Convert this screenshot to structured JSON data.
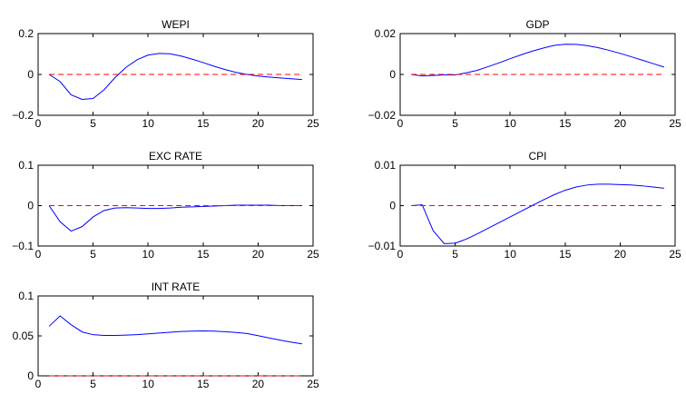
{
  "colors": {
    "irf": "#0000ff",
    "zero": "#ff0000",
    "axis": "#000000"
  },
  "chart_data": [
    {
      "type": "line",
      "title": "WEPI",
      "xlabel": "",
      "ylabel": "",
      "xlim": [
        0,
        25
      ],
      "ylim": [
        -0.2,
        0.2
      ],
      "xticks": [
        0,
        5,
        10,
        15,
        20,
        25
      ],
      "yticks": [
        -0.2,
        0,
        0.2
      ],
      "ytick_labels": [
        "−0.2",
        "0",
        "0.2"
      ],
      "grid": false,
      "x": [
        1,
        2,
        3,
        4,
        5,
        6,
        7,
        8,
        9,
        10,
        11,
        12,
        13,
        14,
        15,
        16,
        17,
        18,
        19,
        20,
        21,
        22,
        23,
        24
      ],
      "series": [
        {
          "values": [
            0,
            -0.035,
            -0.1,
            -0.122,
            -0.118,
            -0.075,
            -0.015,
            0.035,
            0.072,
            0.095,
            0.103,
            0.101,
            0.09,
            0.075,
            0.058,
            0.04,
            0.024,
            0.01,
            0.0,
            -0.008,
            -0.013,
            -0.017,
            -0.021,
            -0.025
          ],
          "style": "solid"
        },
        {
          "values": [
            0,
            0,
            0,
            0,
            0,
            0,
            0,
            0,
            0,
            0,
            0,
            0,
            0,
            0,
            0,
            0,
            0,
            0,
            0,
            0,
            0,
            0,
            0,
            0
          ],
          "style": "dashed"
        }
      ]
    },
    {
      "type": "line",
      "title": "GDP",
      "xlabel": "",
      "ylabel": "",
      "xlim": [
        0,
        25
      ],
      "ylim": [
        -0.02,
        0.02
      ],
      "xticks": [
        0,
        5,
        10,
        15,
        20,
        25
      ],
      "yticks": [
        -0.02,
        0,
        0.02
      ],
      "ytick_labels": [
        "−0.02",
        "0",
        "0.02"
      ],
      "grid": false,
      "x": [
        1,
        2,
        3,
        4,
        5,
        6,
        7,
        8,
        9,
        10,
        11,
        12,
        13,
        14,
        15,
        16,
        17,
        18,
        19,
        20,
        21,
        22,
        23,
        24
      ],
      "series": [
        {
          "values": [
            0,
            -0.0007,
            -0.0005,
            -0.0002,
            -0.0002,
            0.0008,
            0.002,
            0.0038,
            0.0057,
            0.0077,
            0.0096,
            0.0114,
            0.0129,
            0.0142,
            0.0148,
            0.0147,
            0.0141,
            0.0131,
            0.0118,
            0.0103,
            0.0087,
            0.007,
            0.0053,
            0.0036
          ],
          "style": "solid"
        },
        {
          "values": [
            0,
            0,
            0,
            0,
            0,
            0,
            0,
            0,
            0,
            0,
            0,
            0,
            0,
            0,
            0,
            0,
            0,
            0,
            0,
            0,
            0,
            0,
            0,
            0
          ],
          "style": "dashed"
        }
      ]
    },
    {
      "type": "line",
      "title": "EXC RATE",
      "xlabel": "",
      "ylabel": "",
      "xlim": [
        0,
        25
      ],
      "ylim": [
        -0.1,
        0.1
      ],
      "xticks": [
        0,
        5,
        10,
        15,
        20,
        25
      ],
      "yticks": [
        -0.1,
        0,
        0.1
      ],
      "ytick_labels": [
        "−0.1",
        "0",
        "0.1"
      ],
      "grid": false,
      "x": [
        1,
        2,
        3,
        4,
        5,
        6,
        7,
        8,
        9,
        10,
        11,
        12,
        13,
        14,
        15,
        16,
        17,
        18,
        19,
        20,
        21,
        22,
        23,
        24
      ],
      "series": [
        {
          "values": [
            0,
            -0.04,
            -0.063,
            -0.052,
            -0.028,
            -0.012,
            -0.006,
            -0.005,
            -0.006,
            -0.007,
            -0.007,
            -0.006,
            -0.004,
            -0.003,
            -0.002,
            -0.001,
            0.0,
            0.001,
            0.001,
            0.001,
            0.001,
            0.0,
            0.0,
            0.0
          ],
          "style": "solid"
        },
        {
          "values": [
            0,
            0,
            0,
            0,
            0,
            0,
            0,
            0,
            0,
            0,
            0,
            0,
            0,
            0,
            0,
            0,
            0,
            0,
            0,
            0,
            0,
            0,
            0,
            0
          ],
          "style": "dashed"
        }
      ]
    },
    {
      "type": "line",
      "title": "CPI",
      "xlabel": "",
      "ylabel": "",
      "xlim": [
        0,
        25
      ],
      "ylim": [
        -0.01,
        0.01
      ],
      "xticks": [
        0,
        5,
        10,
        15,
        20,
        25
      ],
      "yticks": [
        -0.01,
        0,
        0.01
      ],
      "ytick_labels": [
        "−0.01",
        "0",
        "0.01"
      ],
      "grid": false,
      "x": [
        1,
        2,
        3,
        4,
        5,
        6,
        7,
        8,
        9,
        10,
        11,
        12,
        13,
        14,
        15,
        16,
        17,
        18,
        19,
        20,
        21,
        22,
        23,
        24
      ],
      "series": [
        {
          "values": [
            0,
            0.0002,
            -0.0062,
            -0.0094,
            -0.0093,
            -0.0083,
            -0.007,
            -0.0056,
            -0.0042,
            -0.0028,
            -0.0014,
            0.0,
            0.0014,
            0.0027,
            0.0038,
            0.0046,
            0.0051,
            0.0053,
            0.0053,
            0.0052,
            0.0051,
            0.0049,
            0.0046,
            0.0043
          ],
          "style": "solid"
        },
        {
          "values": [
            0,
            0,
            0,
            0,
            0,
            0,
            0,
            0,
            0,
            0,
            0,
            0,
            0,
            0,
            0,
            0,
            0,
            0,
            0,
            0,
            0,
            0,
            0,
            0
          ],
          "style": "dashed"
        }
      ]
    },
    {
      "type": "line",
      "title": "INT RATE",
      "xlabel": "",
      "ylabel": "",
      "xlim": [
        0,
        25
      ],
      "ylim": [
        0,
        0.1
      ],
      "xticks": [
        0,
        5,
        10,
        15,
        20,
        25
      ],
      "yticks": [
        0,
        0.05,
        0.1
      ],
      "ytick_labels": [
        "0",
        "0.05",
        "0.1"
      ],
      "grid": false,
      "x": [
        1,
        2,
        3,
        4,
        5,
        6,
        7,
        8,
        9,
        10,
        11,
        12,
        13,
        14,
        15,
        16,
        17,
        18,
        19,
        20,
        21,
        22,
        23,
        24
      ],
      "series": [
        {
          "values": [
            0.062,
            0.075,
            0.064,
            0.055,
            0.0515,
            0.0505,
            0.0505,
            0.051,
            0.0515,
            0.0525,
            0.0535,
            0.0545,
            0.0555,
            0.056,
            0.0562,
            0.056,
            0.0553,
            0.0543,
            0.053,
            0.0503,
            0.0475,
            0.0447,
            0.0422,
            0.04
          ],
          "style": "solid"
        },
        {
          "values": [
            0,
            0,
            0,
            0,
            0,
            0,
            0,
            0,
            0,
            0,
            0,
            0,
            0,
            0,
            0,
            0,
            0,
            0,
            0,
            0,
            0,
            0,
            0,
            0
          ],
          "style": "dashed"
        }
      ]
    }
  ]
}
